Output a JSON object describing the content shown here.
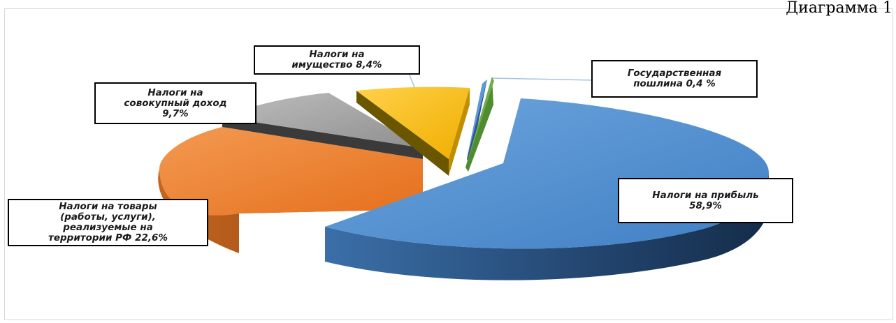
{
  "page": {
    "caption": "Диаграмма 1"
  },
  "chart_data": {
    "type": "pie",
    "title": "",
    "three_d": true,
    "exploded": true,
    "legend": "none",
    "slices": [
      {
        "key": "profit",
        "label": "Налоги на прибыль 58,9%",
        "value": 58.9,
        "color": "#4f8fd1"
      },
      {
        "key": "goods",
        "label": "Налоги на товары (работы, услуги), реализуемые на территории РФ 22,6%",
        "value": 22.6,
        "color": "#ef7f2c"
      },
      {
        "key": "income",
        "label": "Налоги на совокупный доход 9,7%",
        "value": 9.7,
        "color": "#a6a6a6"
      },
      {
        "key": "property",
        "label": "Налоги на имущество 8,4%",
        "value": 8.4,
        "color": "#f7bf00"
      },
      {
        "key": "duty",
        "label": "Государственная пошлина 0,4 %",
        "value": 0.4,
        "color": "#70ad47"
      }
    ],
    "label_lines": {
      "profit": [
        "Налоги на прибыль",
        "58,9%"
      ],
      "goods": [
        "Налоги на товары",
        "(работы, услуги),",
        "реализуемые на",
        "территории РФ 22,6%"
      ],
      "income": [
        "Налоги на",
        "совокупный доход",
        "9,7%"
      ],
      "property": [
        "Налоги на",
        "имущество 8,4%"
      ],
      "duty": [
        "Государственная",
        "пошлина  0,4 %"
      ]
    }
  }
}
